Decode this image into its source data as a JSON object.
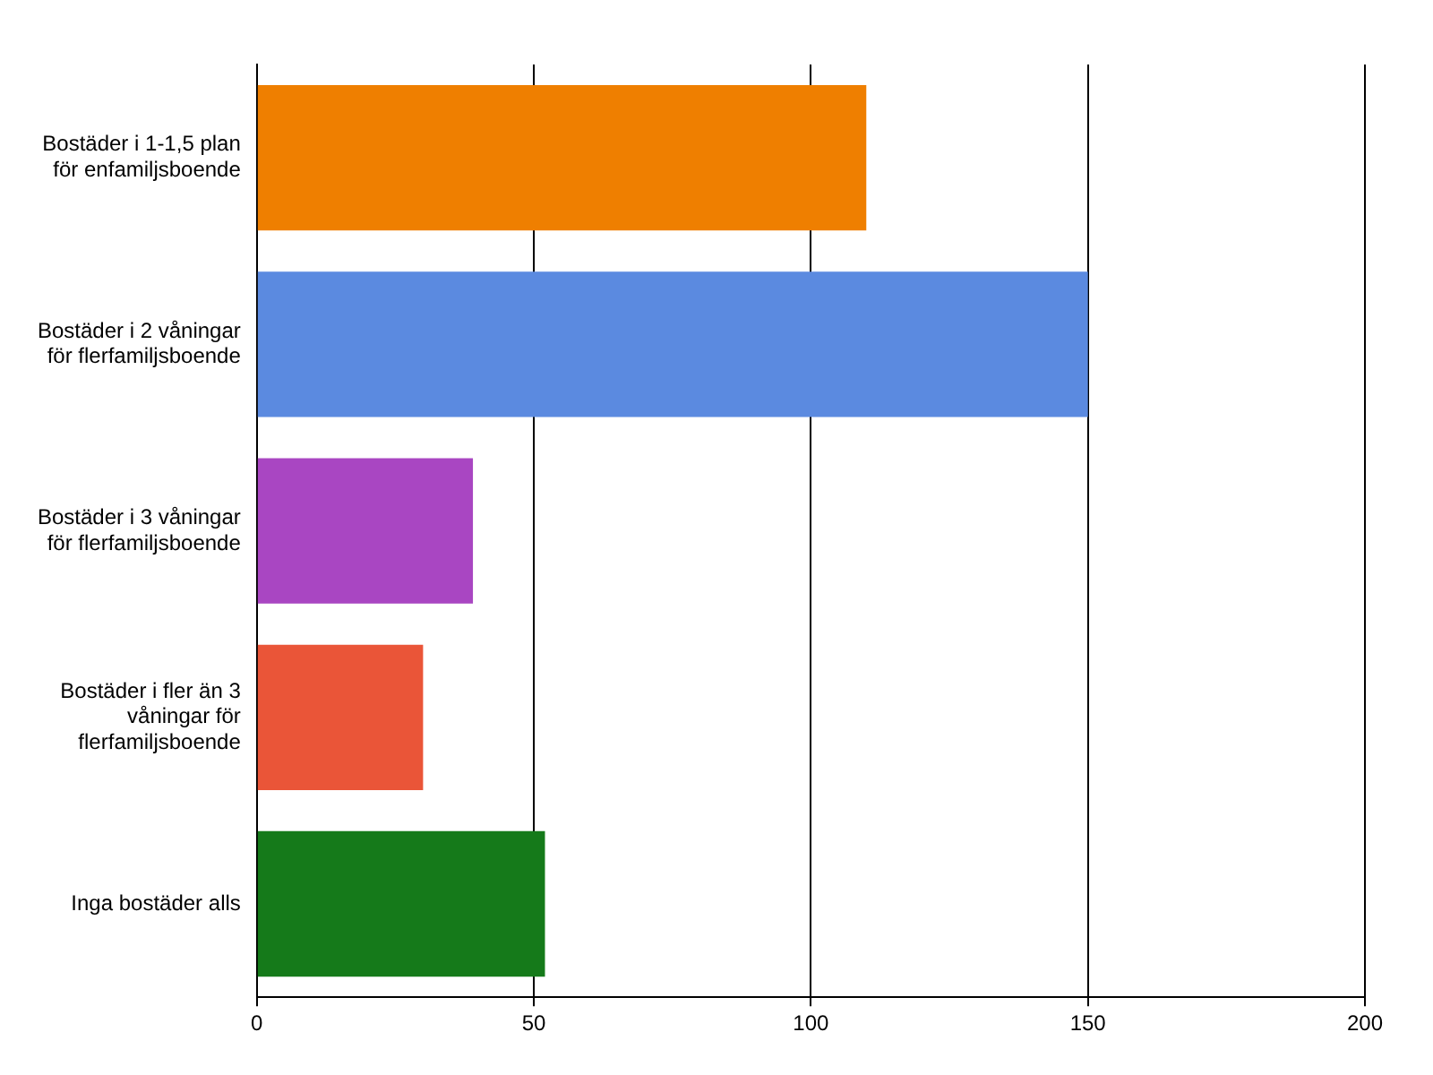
{
  "chart_data": {
    "type": "bar",
    "orientation": "horizontal",
    "categories": [
      "Bostäder i 1-1,5 plan för enfamiljsboende",
      "Bostäder i 2 våningar för flerfamiljsboende",
      "Bostäder i 3 våningar för flerfamiljsboende",
      "Bostäder i fler än 3 våningar för flerfamiljsboende",
      "Inga bostäder alls"
    ],
    "values": [
      110,
      150,
      39,
      30,
      52
    ],
    "colors": [
      "#ef7f00",
      "#5b8ae0",
      "#a946c2",
      "#ea5538",
      "#157a1a"
    ],
    "xlim": [
      0,
      200
    ],
    "xticks": [
      0,
      50,
      100,
      150,
      200
    ],
    "grid": "x",
    "legend": false
  }
}
